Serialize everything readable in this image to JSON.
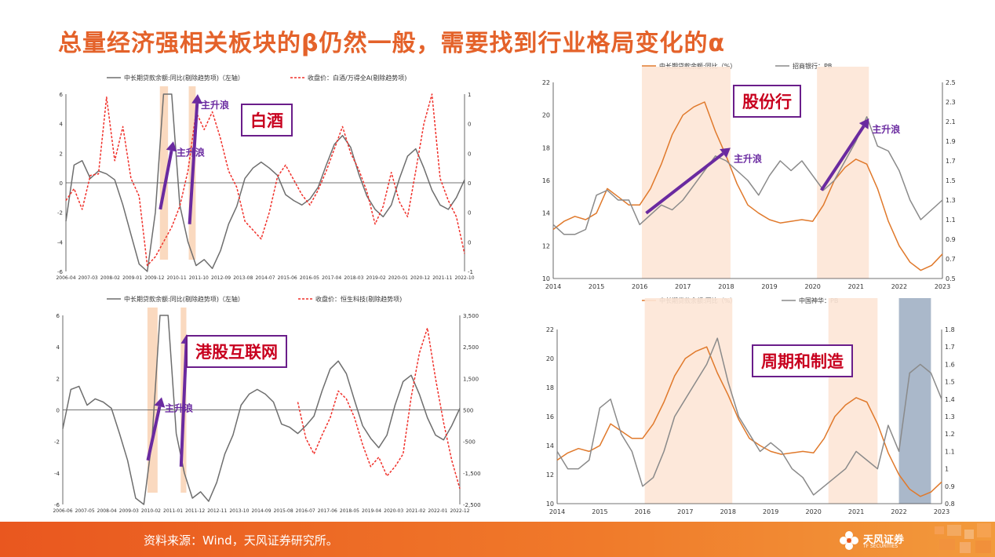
{
  "title": "总量经济强相关板块的β仍然一般，需要找到行业格局变化的α",
  "annotation_text": "主升浪",
  "footer": {
    "source": "资料来源：Wind，天风证券研究所。",
    "logo_name": "天风证券",
    "logo_sub": "TF SECURITIES"
  },
  "colors": {
    "title": "#e4622a",
    "gray_line": "#6e6e6e",
    "red_dash": "#f0302a",
    "orange_line": "#e0792b",
    "shade": "#f6b98a",
    "shade_light": "#fde6d6",
    "slate": "#8ea0b8",
    "arrow": "#6a2aa0"
  },
  "chart_data": [
    {
      "id": "baijiu",
      "type": "line",
      "tag": "白酒",
      "legend": [
        "中长期贷款余额:同比(剔除趋势项)（左轴）",
        "收盘价：白酒/万得全A(剔除趋势项)"
      ],
      "left_ticks": [
        "6",
        "4",
        "2",
        "0",
        "-2",
        "-4",
        "-6"
      ],
      "right_ticks": [
        "1",
        "0",
        "0",
        "0",
        "0",
        "0",
        "-1"
      ],
      "x_ticks": [
        "2006-04",
        "2007-03",
        "2008-02",
        "2009-01",
        "2009-12",
        "2010-11",
        "2011-10",
        "2012-09",
        "2013-08",
        "2014-07",
        "2015-06",
        "2016-05",
        "2017-04",
        "2018-03",
        "2019-02",
        "2020-01",
        "2020-12",
        "2021-11",
        "2022-10"
      ],
      "ylim": [
        -6,
        6
      ],
      "shaded": [
        [
          11.55,
          12.55
        ],
        [
          15.1,
          15.95
        ]
      ],
      "arrows": [
        [
          11.6,
          -1.8,
          13.2,
          2.8
        ],
        [
          15.2,
          -2.8,
          16.2,
          6.0
        ]
      ],
      "series": [
        {
          "name": "gray",
          "style": "solid",
          "color": "#6e6e6e",
          "values": [
            -2.6,
            1.2,
            1.5,
            0.3,
            0.8,
            0.6,
            0.2,
            -1.5,
            -3.5,
            -5.5,
            -6,
            -2,
            6,
            6,
            -1.5,
            -4,
            -5.6,
            -5.2,
            -5.8,
            -4.6,
            -2.8,
            -1.6,
            0.3,
            1.0,
            1.4,
            1.0,
            0.5,
            -0.8,
            -1.2,
            -1.5,
            -1.1,
            -0.3,
            1.2,
            2.6,
            3.2,
            2.4,
            0.6,
            -0.9,
            -1.8,
            -2.3,
            -1.5,
            0.3,
            1.8,
            2.3,
            1.0,
            -0.5,
            -1.5,
            -1.8,
            -1.0,
            0.2
          ]
        },
        {
          "name": "red",
          "style": "dashed",
          "color": "#f0302a",
          "values": [
            -1.2,
            -0.4,
            -1.8,
            0.5,
            0.6,
            5.8,
            1.5,
            3.8,
            0.3,
            -0.9,
            -5.6,
            -5.0,
            -4.0,
            -3.0,
            -1.6,
            0.8,
            4.8,
            3.6,
            4.8,
            3.0,
            0.8,
            -0.3,
            -2.6,
            -3.2,
            -3.8,
            -2.0,
            0.4,
            1.2,
            0.2,
            -0.8,
            -1.5,
            -0.5,
            0.8,
            2.3,
            3.8,
            2.0,
            0.9,
            -0.6,
            -2.8,
            -1.6,
            0.7,
            -1.3,
            -2.3,
            0.8,
            4.0,
            6.0,
            0.3,
            -1.2,
            -2.3,
            -4.8
          ]
        }
      ]
    },
    {
      "id": "gangu",
      "type": "line",
      "tag": "港股互联网",
      "legend": [
        "中长期贷款余额:同比(剔除趋势项)（左轴）",
        "收盘价：恒生科技(剔除趋势项)"
      ],
      "left_ticks": [
        "6",
        "4",
        "2",
        "0",
        "-2",
        "-4",
        "-6"
      ],
      "right_ticks": [
        "3,500",
        "2,500",
        "1,500",
        "500",
        "-500",
        "-1,500",
        "-2,500"
      ],
      "x_ticks": [
        "2006-06",
        "2007-05",
        "2008-04",
        "2009-03",
        "2010-02",
        "2011-01",
        "2011-12",
        "2012-11",
        "2013-10",
        "2014-09",
        "2015-08",
        "2016-07",
        "2017-06",
        "2018-05",
        "2019-04",
        "2020-03",
        "2021-02",
        "2022-01",
        "2022-12"
      ],
      "ylim": [
        -6,
        6
      ],
      "shaded": [
        [
          10.45,
          11.7
        ],
        [
          14.55,
          15.25
        ]
      ],
      "arrows": [
        [
          10.5,
          -3.2,
          12.2,
          0.8
        ],
        [
          14.6,
          -3.6,
          15.3,
          4.8
        ]
      ],
      "series": [
        {
          "name": "gray",
          "style": "solid",
          "color": "#6e6e6e",
          "values": [
            -1.2,
            1.3,
            1.5,
            0.3,
            0.7,
            0.5,
            0.1,
            -1.5,
            -3.2,
            -5.6,
            -6,
            -2,
            6,
            6,
            -1.5,
            -4,
            -5.6,
            -5.2,
            -5.8,
            -4.6,
            -2.8,
            -1.6,
            0.3,
            1.0,
            1.3,
            1.0,
            0.5,
            -0.9,
            -1.1,
            -1.5,
            -1.0,
            -0.4,
            1.2,
            2.6,
            3.1,
            2.3,
            0.6,
            -1.0,
            -1.8,
            -2.4,
            -1.6,
            0.3,
            1.8,
            2.2,
            1.0,
            -0.5,
            -1.6,
            -1.9,
            -1.0,
            0.1
          ]
        },
        {
          "name": "red",
          "style": "dashed",
          "color": "#f0302a",
          "values": [
            null,
            null,
            null,
            null,
            null,
            null,
            null,
            null,
            null,
            null,
            null,
            null,
            null,
            null,
            null,
            null,
            null,
            null,
            null,
            null,
            null,
            null,
            null,
            null,
            null,
            null,
            null,
            null,
            null,
            0.5,
            -1.8,
            -2.8,
            -1.6,
            -0.5,
            1.2,
            0.7,
            -0.5,
            -2.2,
            -3.6,
            -3.0,
            -4.2,
            -3.6,
            -2.8,
            0.8,
            3.6,
            5.2,
            2.0,
            -0.8,
            -3.2,
            -5.0
          ]
        }
      ]
    },
    {
      "id": "bank",
      "type": "line",
      "tag": "股份行",
      "legend": [
        "中长期贷款余额:同比（%）",
        "招商银行：PB"
      ],
      "left_ticks": [
        "22",
        "20",
        "18",
        "16",
        "14",
        "12",
        "10"
      ],
      "right_ticks": [
        "2.5",
        "2.3",
        "2.1",
        "1.9",
        "1.7",
        "1.5",
        "1.3",
        "1.1",
        "0.9",
        "0.7",
        "0.5"
      ],
      "x_ticks": [
        "2014",
        "2015",
        "2016",
        "2017",
        "2018",
        "2019",
        "2020",
        "2021",
        "2022",
        "2023"
      ],
      "ylim": [
        10,
        22
      ],
      "shaded": [
        [
          2016.05,
          2018.1
        ],
        [
          2020.1,
          2021.3
        ]
      ],
      "arrows": [
        [
          2016.15,
          14.0,
          2018.1,
          18.0
        ],
        [
          2020.2,
          15.4,
          2021.3,
          19.8
        ]
      ],
      "series": [
        {
          "name": "贷款同比",
          "style": "solid",
          "color": "#e0792b",
          "x": [
            2014.0,
            2014.25,
            2014.5,
            2014.75,
            2015.0,
            2015.25,
            2015.5,
            2015.75,
            2016.0,
            2016.25,
            2016.5,
            2016.75,
            2017.0,
            2017.25,
            2017.5,
            2017.75,
            2018.0,
            2018.25,
            2018.5,
            2018.75,
            2019.0,
            2019.25,
            2019.5,
            2019.75,
            2020.0,
            2020.25,
            2020.5,
            2020.75,
            2021.0,
            2021.25,
            2021.5,
            2021.75,
            2022.0,
            2022.25,
            2022.5,
            2022.75,
            2023.0
          ],
          "values": [
            13.0,
            13.5,
            13.8,
            13.6,
            14.0,
            15.5,
            15.0,
            14.5,
            14.5,
            15.5,
            17.0,
            18.8,
            20.0,
            20.5,
            20.8,
            19.0,
            17.5,
            15.8,
            14.5,
            14.0,
            13.6,
            13.4,
            13.5,
            13.6,
            13.5,
            14.5,
            16.0,
            16.8,
            17.3,
            17.0,
            15.5,
            13.5,
            12.0,
            11.0,
            10.5,
            10.8,
            11.5
          ]
        },
        {
          "name": "招商银行PB",
          "style": "solid",
          "color": "#8a8a8a",
          "x": [
            2014.0,
            2014.25,
            2014.5,
            2014.75,
            2015.0,
            2015.25,
            2015.5,
            2015.75,
            2016.0,
            2016.25,
            2016.5,
            2016.75,
            2017.0,
            2017.25,
            2017.5,
            2017.75,
            2018.0,
            2018.25,
            2018.5,
            2018.75,
            2019.0,
            2019.25,
            2019.5,
            2019.75,
            2020.0,
            2020.25,
            2020.5,
            2020.75,
            2021.0,
            2021.25,
            2021.5,
            2021.75,
            2022.0,
            2022.25,
            2022.5,
            2022.75,
            2023.0
          ],
          "values": [
            1.05,
            0.95,
            0.95,
            1.0,
            1.35,
            1.4,
            1.3,
            1.3,
            1.05,
            1.15,
            1.25,
            1.2,
            1.3,
            1.45,
            1.6,
            1.75,
            1.7,
            1.6,
            1.5,
            1.35,
            1.55,
            1.7,
            1.6,
            1.7,
            1.55,
            1.4,
            1.5,
            1.7,
            1.9,
            2.15,
            1.85,
            1.8,
            1.6,
            1.3,
            1.1,
            1.2,
            1.3
          ]
        }
      ]
    },
    {
      "id": "cyclical",
      "type": "line",
      "tag": "周期和制造",
      "legend": [
        "中长期贷款余额:同比（%）",
        "中国神华：PB"
      ],
      "left_ticks": [
        "22",
        "20",
        "18",
        "16",
        "14",
        "12",
        "10"
      ],
      "right_ticks": [
        "1.8",
        "1.7",
        "1.6",
        "1.5",
        "1.4",
        "1.3",
        "1.2",
        "1.1",
        "1",
        "0.9",
        "0.8"
      ],
      "x_ticks": [
        "2014",
        "2015",
        "2016",
        "2017",
        "2018",
        "2019",
        "2020",
        "2021",
        "2022",
        "2023"
      ],
      "ylim": [
        10,
        22
      ],
      "shaded": [
        [
          2016.05,
          2018.1
        ],
        [
          2020.35,
          2021.5
        ]
      ],
      "slate": [
        2022.0,
        2022.75
      ],
      "series": [
        {
          "name": "贷款同比",
          "style": "solid",
          "color": "#e0792b",
          "x": [
            2014.0,
            2014.25,
            2014.5,
            2014.75,
            2015.0,
            2015.25,
            2015.5,
            2015.75,
            2016.0,
            2016.25,
            2016.5,
            2016.75,
            2017.0,
            2017.25,
            2017.5,
            2017.75,
            2018.0,
            2018.25,
            2018.5,
            2018.75,
            2019.0,
            2019.25,
            2019.5,
            2019.75,
            2020.0,
            2020.25,
            2020.5,
            2020.75,
            2021.0,
            2021.25,
            2021.5,
            2021.75,
            2022.0,
            2022.25,
            2022.5,
            2022.75,
            2023.0
          ],
          "values": [
            13.0,
            13.5,
            13.8,
            13.6,
            14.0,
            15.5,
            15.0,
            14.5,
            14.5,
            15.5,
            17.0,
            18.8,
            20.0,
            20.5,
            20.8,
            19.0,
            17.5,
            15.8,
            14.5,
            14.0,
            13.6,
            13.4,
            13.5,
            13.6,
            13.5,
            14.5,
            16.0,
            16.8,
            17.3,
            17.0,
            15.5,
            13.5,
            12.0,
            11.0,
            10.5,
            10.8,
            11.5
          ]
        },
        {
          "name": "中国神华PB",
          "style": "solid",
          "color": "#8a8a8a",
          "x": [
            2014.0,
            2014.25,
            2014.5,
            2014.75,
            2015.0,
            2015.25,
            2015.5,
            2015.75,
            2016.0,
            2016.25,
            2016.5,
            2016.75,
            2017.0,
            2017.25,
            2017.5,
            2017.75,
            2018.0,
            2018.25,
            2018.5,
            2018.75,
            2019.0,
            2019.25,
            2019.5,
            2019.75,
            2020.0,
            2020.25,
            2020.5,
            2020.75,
            2021.0,
            2021.25,
            2021.5,
            2021.75,
            2022.0,
            2022.25,
            2022.5,
            2022.75,
            2023.0
          ],
          "values": [
            1.1,
            1.0,
            1.0,
            1.05,
            1.35,
            1.4,
            1.2,
            1.1,
            0.9,
            0.95,
            1.1,
            1.3,
            1.4,
            1.5,
            1.6,
            1.75,
            1.5,
            1.3,
            1.2,
            1.1,
            1.15,
            1.1,
            1.0,
            0.95,
            0.85,
            0.9,
            0.95,
            1.0,
            1.1,
            1.05,
            1.0,
            1.25,
            1.1,
            1.55,
            1.6,
            1.55,
            1.4
          ]
        }
      ]
    }
  ]
}
